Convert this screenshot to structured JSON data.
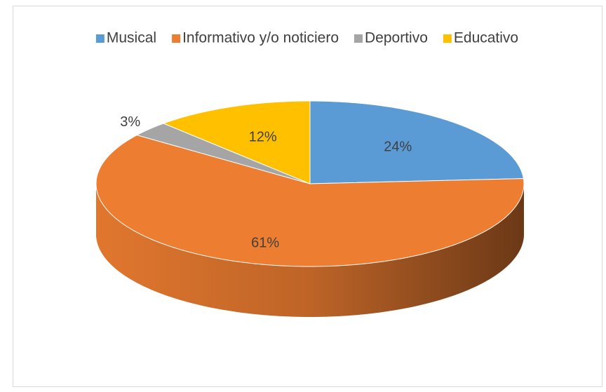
{
  "chart_data": {
    "type": "pie3d",
    "categories": [
      "Musical",
      "Informativo y/o noticiero",
      "Deportivo",
      "Educativo"
    ],
    "values": [
      24,
      61,
      3,
      12
    ],
    "value_labels": [
      "24%",
      "61%",
      "3%",
      "12%"
    ],
    "colors": [
      "#5b9bd5",
      "#ed7d31",
      "#a5a5a5",
      "#ffc000"
    ],
    "legend": "top"
  }
}
